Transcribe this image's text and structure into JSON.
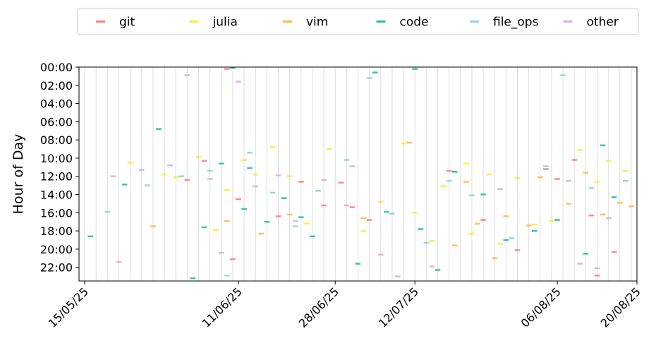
{
  "chart_data": {
    "type": "scatter",
    "title": "",
    "xlabel": "",
    "ylabel": "Hour of Day",
    "x_axis": {
      "type": "date",
      "date_format": "DD/MM/YY",
      "range": [
        "2025-05-14",
        "2025-08-20"
      ],
      "tick_labels": [
        "15/05/25",
        "11/06/25",
        "28/06/25",
        "12/07/25",
        "06/08/25",
        "20/08/25"
      ],
      "tick_dates": [
        "2025-05-15",
        "2025-06-11",
        "2025-06-28",
        "2025-07-12",
        "2025-08-06",
        "2025-08-20"
      ]
    },
    "y_axis": {
      "inverted": true,
      "range": [
        0,
        23.5
      ],
      "tick_labels": [
        "00:00",
        "02:00",
        "04:00",
        "06:00",
        "08:00",
        "10:00",
        "12:00",
        "14:00",
        "16:00",
        "18:00",
        "20:00",
        "22:00"
      ],
      "tick_values": [
        0,
        2,
        4,
        6,
        8,
        10,
        12,
        14,
        16,
        18,
        20,
        22
      ]
    },
    "legend": {
      "position": "top-center-outside",
      "columns": 6,
      "entries": [
        {
          "name": "git",
          "color": "#ff7f7f"
        },
        {
          "name": "julia",
          "color": "#f5ec42"
        },
        {
          "name": "vim",
          "color": "#ffb84d"
        },
        {
          "name": "code",
          "color": "#2bbfa0"
        },
        {
          "name": "file_ops",
          "color": "#8fd3e0"
        },
        {
          "name": "other",
          "color": "#e0a8e8"
        }
      ]
    },
    "grid": {
      "vertical_day_lines": true,
      "horizontal": false
    },
    "series": [
      {
        "name": "git",
        "color": "#ff7f7f",
        "points": [
          [
            "2025-06-02",
            12.4
          ],
          [
            "2025-06-05",
            10.3
          ],
          [
            "2025-06-09",
            0.2
          ],
          [
            "2025-06-10",
            21.1
          ],
          [
            "2025-06-11",
            14.5
          ],
          [
            "2025-06-18",
            16.4
          ],
          [
            "2025-06-22",
            12.6
          ],
          [
            "2025-06-26",
            15.2
          ],
          [
            "2025-06-29",
            12.7
          ],
          [
            "2025-07-01",
            15.4
          ],
          [
            "2025-07-04",
            16.8
          ],
          [
            "2025-07-18",
            11.4
          ],
          [
            "2025-07-24",
            16.8
          ],
          [
            "2025-07-30",
            20.1
          ],
          [
            "2025-08-04",
            11.2
          ],
          [
            "2025-08-06",
            12.3
          ],
          [
            "2025-08-09",
            10.2
          ],
          [
            "2025-08-12",
            16.3
          ],
          [
            "2025-08-13",
            22.9
          ],
          [
            "2025-08-16",
            20.3
          ]
        ]
      },
      {
        "name": "julia",
        "color": "#f5ec42",
        "points": [
          [
            "2025-05-23",
            10.5
          ],
          [
            "2025-05-29",
            11.8
          ],
          [
            "2025-05-31",
            12.1
          ],
          [
            "2025-06-04",
            9.9
          ],
          [
            "2025-06-07",
            17.9
          ],
          [
            "2025-06-09",
            13.5
          ],
          [
            "2025-06-12",
            10.2
          ],
          [
            "2025-06-14",
            11.8
          ],
          [
            "2025-06-17",
            8.8
          ],
          [
            "2025-06-20",
            12.0
          ],
          [
            "2025-06-23",
            17.2
          ],
          [
            "2025-06-27",
            9.0
          ],
          [
            "2025-07-03",
            18.0
          ],
          [
            "2025-07-06",
            14.8
          ],
          [
            "2025-07-10",
            8.4
          ],
          [
            "2025-07-12",
            16.0
          ],
          [
            "2025-07-15",
            19.1
          ],
          [
            "2025-07-17",
            13.1
          ],
          [
            "2025-07-21",
            10.6
          ],
          [
            "2025-07-22",
            18.3
          ],
          [
            "2025-07-25",
            11.8
          ],
          [
            "2025-07-27",
            19.4
          ],
          [
            "2025-07-30",
            12.2
          ],
          [
            "2025-08-02",
            17.3
          ],
          [
            "2025-08-05",
            16.9
          ],
          [
            "2025-08-10",
            9.1
          ],
          [
            "2025-08-13",
            12.6
          ],
          [
            "2025-08-15",
            10.3
          ],
          [
            "2025-08-18",
            11.4
          ]
        ]
      },
      {
        "name": "vim",
        "color": "#ffb84d",
        "points": [
          [
            "2025-05-27",
            17.5
          ],
          [
            "2025-06-09",
            16.9
          ],
          [
            "2025-06-15",
            18.3
          ],
          [
            "2025-06-20",
            16.2
          ],
          [
            "2025-07-03",
            16.6
          ],
          [
            "2025-07-11",
            8.3
          ],
          [
            "2025-07-19",
            19.6
          ],
          [
            "2025-07-21",
            12.6
          ],
          [
            "2025-07-23",
            17.2
          ],
          [
            "2025-07-26",
            21.0
          ],
          [
            "2025-07-28",
            16.4
          ],
          [
            "2025-08-01",
            17.4
          ],
          [
            "2025-08-03",
            12.1
          ],
          [
            "2025-08-08",
            15.0
          ],
          [
            "2025-08-11",
            11.6
          ],
          [
            "2025-08-14",
            16.2
          ],
          [
            "2025-08-17",
            14.9
          ],
          [
            "2025-08-19",
            15.3
          ]
        ]
      },
      {
        "name": "code",
        "color": "#2bbfa0",
        "points": [
          [
            "2025-05-16",
            18.6
          ],
          [
            "2025-05-22",
            12.9
          ],
          [
            "2025-05-28",
            6.8
          ],
          [
            "2025-06-03",
            23.2
          ],
          [
            "2025-06-05",
            17.6
          ],
          [
            "2025-06-08",
            10.6
          ],
          [
            "2025-06-10",
            0.1
          ],
          [
            "2025-06-12",
            15.6
          ],
          [
            "2025-06-13",
            11.1
          ],
          [
            "2025-06-16",
            17.0
          ],
          [
            "2025-06-19",
            14.4
          ],
          [
            "2025-06-22",
            16.5
          ],
          [
            "2025-06-24",
            18.6
          ],
          [
            "2025-07-02",
            21.6
          ],
          [
            "2025-07-05",
            0.6
          ],
          [
            "2025-07-07",
            15.9
          ],
          [
            "2025-07-12",
            0.2
          ],
          [
            "2025-07-13",
            17.8
          ],
          [
            "2025-07-16",
            22.3
          ],
          [
            "2025-07-19",
            11.5
          ],
          [
            "2025-07-24",
            14.0
          ],
          [
            "2025-07-28",
            19.0
          ],
          [
            "2025-08-02",
            18.0
          ],
          [
            "2025-08-06",
            16.8
          ],
          [
            "2025-08-11",
            20.5
          ],
          [
            "2025-08-14",
            8.6
          ],
          [
            "2025-08-16",
            14.3
          ]
        ]
      },
      {
        "name": "file_ops",
        "color": "#8fd3e0",
        "points": [
          [
            "2025-05-19",
            15.9
          ],
          [
            "2025-05-26",
            13.0
          ],
          [
            "2025-06-01",
            12.0
          ],
          [
            "2025-06-06",
            11.4
          ],
          [
            "2025-06-09",
            22.9
          ],
          [
            "2025-06-13",
            9.4
          ],
          [
            "2025-06-17",
            13.8
          ],
          [
            "2025-06-21",
            17.5
          ],
          [
            "2025-06-25",
            13.6
          ],
          [
            "2025-06-30",
            10.2
          ],
          [
            "2025-07-04",
            1.2
          ],
          [
            "2025-07-08",
            16.1
          ],
          [
            "2025-07-14",
            19.3
          ],
          [
            "2025-07-18",
            12.5
          ],
          [
            "2025-07-22",
            14.1
          ],
          [
            "2025-07-29",
            18.8
          ],
          [
            "2025-08-04",
            10.9
          ],
          [
            "2025-08-07",
            0.9
          ],
          [
            "2025-08-12",
            13.3
          ],
          [
            "2025-08-18",
            12.5
          ]
        ]
      },
      {
        "name": "other",
        "color": "#e0a8e8",
        "points": [
          [
            "2025-05-20",
            12.0
          ],
          [
            "2025-05-21",
            21.4
          ],
          [
            "2025-05-25",
            11.3
          ],
          [
            "2025-05-30",
            10.8
          ],
          [
            "2025-06-02",
            0.9
          ],
          [
            "2025-06-06",
            12.3
          ],
          [
            "2025-06-08",
            20.4
          ],
          [
            "2025-06-11",
            1.6
          ],
          [
            "2025-06-14",
            13.1
          ],
          [
            "2025-06-18",
            11.9
          ],
          [
            "2025-06-21",
            16.9
          ],
          [
            "2025-06-26",
            12.4
          ],
          [
            "2025-06-30",
            15.2
          ],
          [
            "2025-07-01",
            10.9
          ],
          [
            "2025-07-06",
            20.6
          ],
          [
            "2025-07-09",
            23.0
          ],
          [
            "2025-07-15",
            21.9
          ],
          [
            "2025-07-27",
            13.4
          ],
          [
            "2025-08-08",
            12.5
          ],
          [
            "2025-08-10",
            21.6
          ],
          [
            "2025-08-13",
            22.1
          ],
          [
            "2025-08-15",
            16.6
          ]
        ]
      }
    ]
  }
}
